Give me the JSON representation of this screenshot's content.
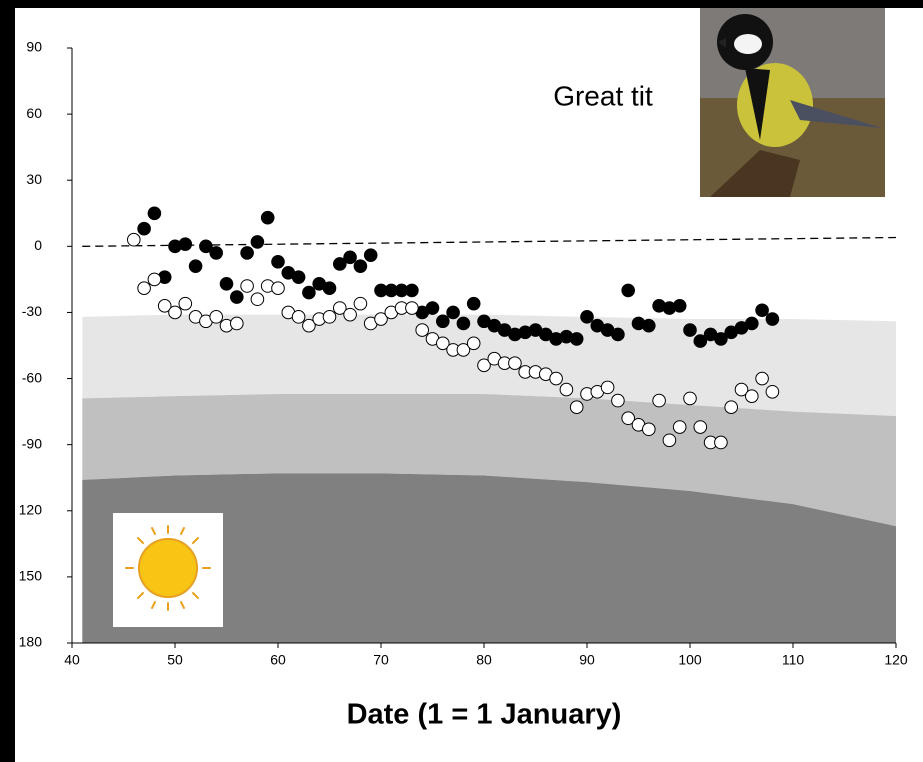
{
  "chart_data": {
    "type": "scatter",
    "annotation": "Great tit",
    "xlabel": "Date (1 = 1 January)",
    "xlim": [
      40,
      120
    ],
    "xticks": [
      40,
      50,
      60,
      70,
      80,
      90,
      100,
      110,
      120
    ],
    "ylim": [
      -180,
      90
    ],
    "yticks": [
      90,
      60,
      30,
      0,
      -30,
      -60,
      -90,
      {
        "value": -120,
        "label": "120"
      },
      {
        "value": -150,
        "label": "150"
      },
      {
        "value": -180,
        "label": "180"
      }
    ],
    "areas": [
      {
        "color": "#e6e6e6",
        "x": [
          41,
          50,
          60,
          70,
          80,
          90,
          100,
          110,
          120
        ],
        "values": [
          -32,
          -31,
          -31,
          -31,
          -31,
          -32,
          -33,
          -33,
          -34
        ],
        "lower": [
          -69,
          -68,
          -67,
          -67,
          -67,
          -69,
          -72,
          -75,
          -77
        ]
      },
      {
        "color": "#c0c0c0",
        "x": [
          41,
          50,
          60,
          70,
          80,
          90,
          100,
          110,
          120
        ],
        "values": [
          -69,
          -68,
          -67,
          -67,
          -67,
          -69,
          -72,
          -75,
          -77
        ],
        "lower": [
          -106,
          -104,
          -103,
          -103,
          -104,
          -107,
          -111,
          -117,
          -127
        ]
      },
      {
        "color": "#808080",
        "x": [
          41,
          50,
          60,
          70,
          80,
          90,
          100,
          110,
          120
        ],
        "values": [
          -106,
          -104,
          -103,
          -103,
          -104,
          -107,
          -111,
          -117,
          -127
        ],
        "lower": [
          -180,
          -180,
          -180,
          -180,
          -180,
          -180,
          -180,
          -180,
          -180
        ]
      }
    ],
    "reference_line": {
      "color": "#000000",
      "x": [
        41,
        120
      ],
      "values": [
        0,
        4
      ]
    },
    "series": [
      {
        "color": "#000000",
        "x": [
          47,
          48,
          49,
          50,
          51,
          52,
          53,
          54,
          55,
          56,
          57,
          58,
          59,
          60,
          61,
          62,
          63,
          64,
          65,
          66,
          67,
          68,
          69,
          70,
          71,
          72,
          73,
          74,
          75,
          76,
          77,
          78,
          79,
          80,
          81,
          82,
          83,
          84,
          85,
          86,
          87,
          88,
          89,
          90,
          91,
          92,
          93,
          94,
          95,
          96,
          97,
          98,
          99,
          100,
          101,
          102,
          103,
          104,
          105,
          106,
          107,
          108
        ],
        "values": [
          8,
          15,
          -14,
          0,
          1,
          -9,
          0,
          -3,
          -17,
          -23,
          -3,
          2,
          13,
          -7,
          -12,
          -14,
          -21,
          -17,
          -19,
          -8,
          -5,
          -9,
          -4,
          -20,
          -20,
          -20,
          -20,
          -30,
          -28,
          -34,
          -30,
          -35,
          -26,
          -34,
          -36,
          -38,
          -40,
          -39,
          -38,
          -40,
          -42,
          -41,
          -42,
          -32,
          -36,
          -38,
          -40,
          -20,
          -35,
          -36,
          -27,
          -28,
          -27,
          -38,
          -43,
          -40,
          -42,
          -39,
          -37,
          -35,
          -29,
          -33
        ]
      },
      {
        "color": "#ffffff",
        "x": [
          46,
          47,
          48,
          49,
          50,
          51,
          52,
          53,
          54,
          55,
          56,
          57,
          58,
          59,
          60,
          61,
          62,
          63,
          64,
          65,
          66,
          67,
          68,
          69,
          70,
          71,
          72,
          73,
          74,
          75,
          76,
          77,
          78,
          79,
          80,
          81,
          82,
          83,
          84,
          85,
          86,
          87,
          88,
          89,
          90,
          91,
          92,
          93,
          94,
          95,
          96,
          97,
          98,
          99,
          100,
          101,
          102,
          103,
          104,
          105,
          106,
          107,
          108
        ],
        "values": [
          3,
          -19,
          -15,
          -27,
          -30,
          -26,
          -32,
          -34,
          -32,
          -36,
          -35,
          -18,
          -24,
          -18,
          -19,
          -30,
          -32,
          -36,
          -33,
          -32,
          -28,
          -31,
          -26,
          -35,
          -33,
          -30,
          -28,
          -28,
          -38,
          -42,
          -44,
          -47,
          -47,
          -44,
          -54,
          -51,
          -53,
          -53,
          -57,
          -57,
          -58,
          -60,
          -65,
          -73,
          -67,
          -66,
          -64,
          -70,
          -78,
          -81,
          -83,
          -70,
          -88,
          -82,
          -69,
          -82,
          -89,
          -89,
          -73,
          -65,
          -68,
          -60,
          -66
        ]
      }
    ]
  }
}
